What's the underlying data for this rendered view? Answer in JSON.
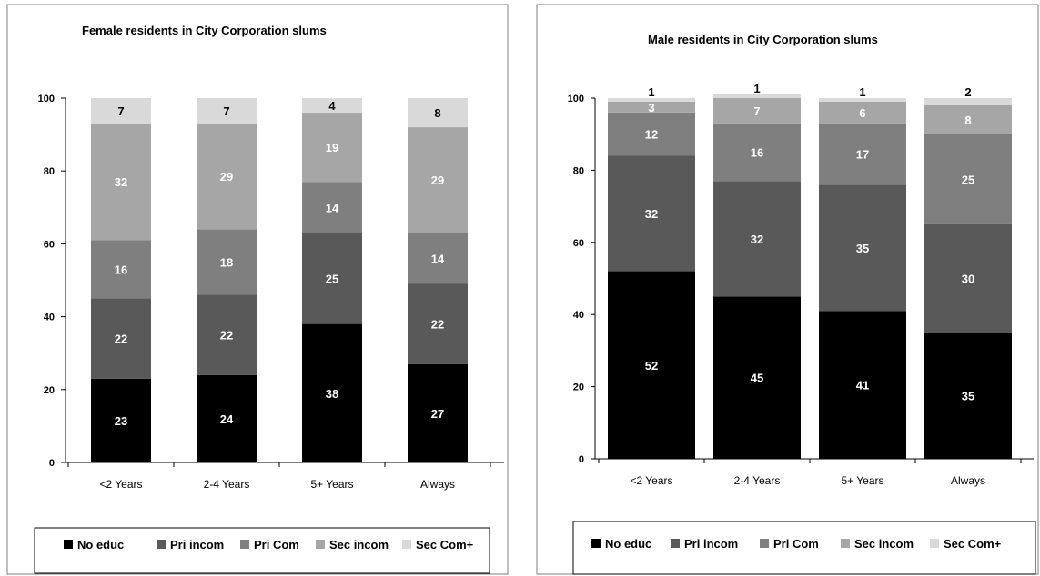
{
  "chart_data": [
    {
      "type": "bar",
      "stacked": true,
      "title": "Female residents in City Corporation slums",
      "categories": [
        "<2 Years",
        "2-4 Years",
        "5+ Years",
        "Always"
      ],
      "ylim": [
        0,
        100
      ],
      "yticks": [
        0,
        20,
        40,
        60,
        80,
        100
      ],
      "grid": false,
      "legend_position": "bottom",
      "series": [
        {
          "name": "No educ",
          "values": [
            23,
            24,
            38,
            27
          ],
          "color": "#000000"
        },
        {
          "name": "Pri incom",
          "values": [
            22,
            22,
            25,
            22
          ],
          "color": "#595959"
        },
        {
          "name": "Pri Com",
          "values": [
            16,
            18,
            14,
            14
          ],
          "color": "#7f7f7f"
        },
        {
          "name": "Sec incom",
          "values": [
            32,
            29,
            19,
            29
          ],
          "color": "#a6a6a6"
        },
        {
          "name": "Sec Com+",
          "values": [
            7,
            7,
            4,
            8
          ],
          "color": "#d9d9d9"
        }
      ]
    },
    {
      "type": "bar",
      "stacked": true,
      "title": "Male residents in City Corporation slums",
      "categories": [
        "<2 Years",
        "2-4 Years",
        "5+ Years",
        "Always"
      ],
      "ylim": [
        0,
        100
      ],
      "yticks": [
        0,
        20,
        40,
        60,
        80,
        100
      ],
      "grid": false,
      "legend_position": "bottom",
      "series": [
        {
          "name": "No educ",
          "values": [
            52,
            45,
            41,
            35
          ],
          "color": "#000000"
        },
        {
          "name": "Pri incom",
          "values": [
            32,
            32,
            35,
            30
          ],
          "color": "#595959"
        },
        {
          "name": "Pri Com",
          "values": [
            12,
            16,
            17,
            25
          ],
          "color": "#7f7f7f"
        },
        {
          "name": "Sec incom",
          "values": [
            3,
            7,
            6,
            8
          ],
          "color": "#a6a6a6"
        },
        {
          "name": "Sec Com+",
          "values": [
            1,
            1,
            1,
            2
          ],
          "color": "#d9d9d9"
        }
      ]
    }
  ]
}
